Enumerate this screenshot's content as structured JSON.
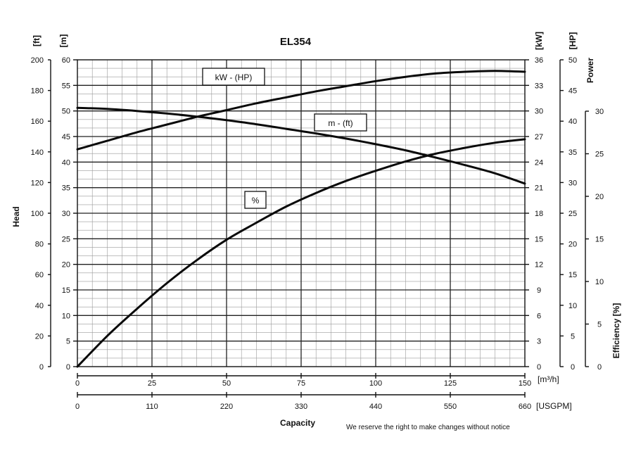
{
  "chart_data": {
    "type": "line",
    "title": "EL354",
    "footnote": "We reserve the right to make changes without notice",
    "x_primary": {
      "label": "Capacity",
      "unit": "[m³/h]",
      "ticks": [
        0,
        25,
        50,
        75,
        100,
        125,
        150
      ],
      "range": [
        0,
        150
      ]
    },
    "x_secondary": {
      "unit": "[USGPM]",
      "ticks": [
        0,
        110,
        220,
        330,
        440,
        550,
        660
      ]
    },
    "y_left_ft": {
      "label": "Head",
      "unit": "[ft]",
      "ticks": [
        0,
        20,
        40,
        60,
        80,
        100,
        120,
        140,
        160,
        180,
        200
      ]
    },
    "y_left_m": {
      "unit": "[m]",
      "ticks": [
        0,
        5,
        10,
        15,
        20,
        25,
        30,
        35,
        40,
        45,
        50,
        55,
        60
      ],
      "range": [
        0,
        60
      ]
    },
    "y_right_kw": {
      "unit": "[kW]",
      "ticks": [
        0,
        3,
        6,
        9,
        12,
        15,
        18,
        21,
        24,
        27,
        30,
        33,
        36
      ],
      "range": [
        0,
        36
      ]
    },
    "y_right_hp": {
      "label": "Power",
      "unit": "[HP]",
      "ticks": [
        0,
        5,
        10,
        15,
        20,
        25,
        30,
        35,
        40,
        45,
        50
      ]
    },
    "y_right_eff": {
      "label": "Efficiency [%]",
      "ticks": [
        0,
        5,
        10,
        15,
        20,
        25,
        30
      ]
    },
    "series": [
      {
        "name": "kW - (HP)",
        "axis": "kW",
        "x": [
          0,
          10,
          20,
          30,
          40,
          50,
          60,
          70,
          80,
          90,
          100,
          110,
          120,
          130,
          140,
          150
        ],
        "y": [
          25.5,
          26.5,
          27.5,
          28.4,
          29.3,
          30.1,
          30.9,
          31.6,
          32.3,
          32.9,
          33.5,
          34.0,
          34.4,
          34.6,
          34.7,
          34.6
        ]
      },
      {
        "name": "m - (ft)",
        "axis": "m",
        "x": [
          0,
          10,
          20,
          30,
          40,
          50,
          60,
          70,
          80,
          90,
          100,
          110,
          120,
          130,
          140,
          150
        ],
        "y": [
          50.6,
          50.4,
          50.0,
          49.5,
          48.9,
          48.2,
          47.4,
          46.5,
          45.6,
          44.6,
          43.5,
          42.3,
          40.9,
          39.4,
          37.8,
          35.8
        ]
      },
      {
        "name": "%",
        "axis": "%",
        "x": [
          0,
          10,
          20,
          30,
          40,
          50,
          60,
          70,
          80,
          90,
          100,
          110,
          120,
          130,
          140,
          150
        ],
        "y": [
          0,
          3.6,
          6.8,
          9.8,
          12.5,
          14.9,
          16.9,
          18.8,
          20.4,
          21.8,
          23.0,
          24.1,
          25.0,
          25.7,
          26.3,
          26.7
        ]
      }
    ]
  }
}
